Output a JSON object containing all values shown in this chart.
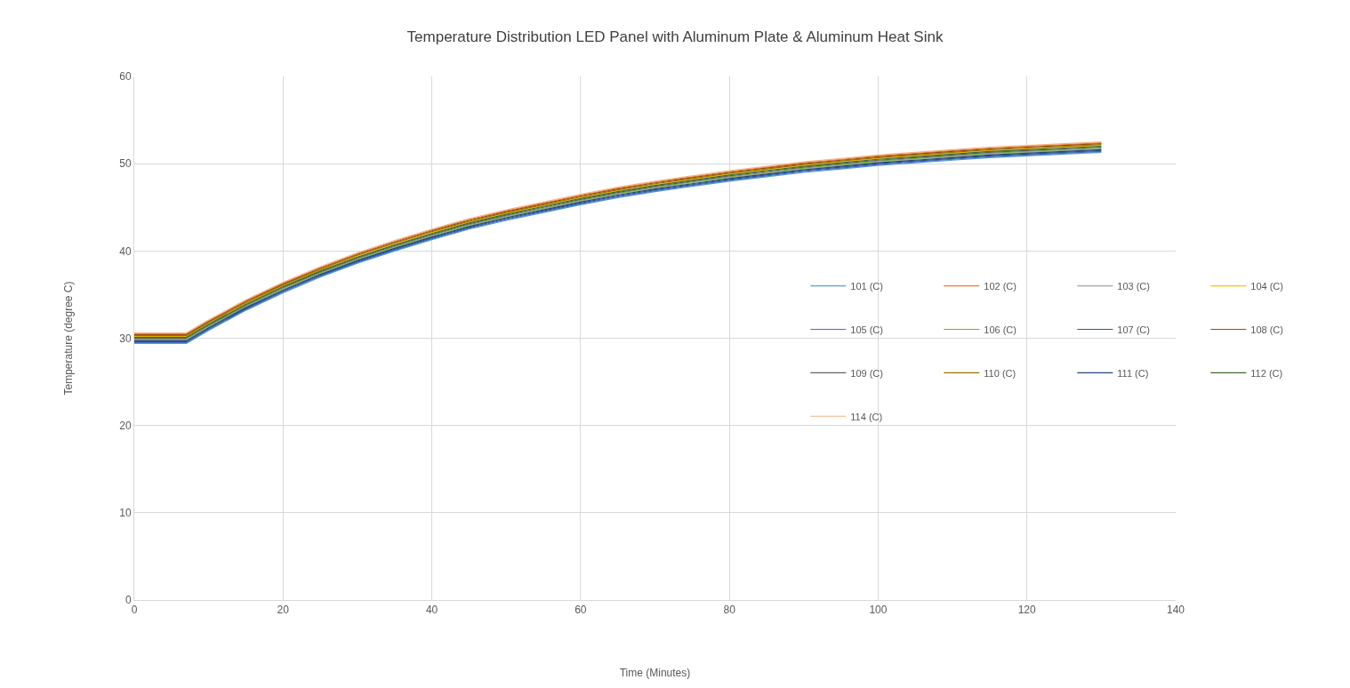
{
  "chart_data": {
    "type": "line",
    "title": "Temperature Distribution LED Panel with Aluminum Plate & Aluminum Heat Sink",
    "xlabel": "Time (Minutes)",
    "ylabel": "Temperature (degree C)",
    "x": [
      0,
      7,
      10,
      15,
      20,
      25,
      30,
      35,
      40,
      45,
      50,
      55,
      60,
      65,
      70,
      75,
      80,
      85,
      90,
      95,
      100,
      105,
      110,
      115,
      120,
      125,
      130
    ],
    "xlim": [
      0,
      140
    ],
    "xticks": [
      0,
      20,
      40,
      60,
      80,
      100,
      120,
      140
    ],
    "ylim": [
      0,
      60
    ],
    "yticks": [
      0,
      10,
      20,
      30,
      40,
      50,
      60
    ],
    "grid": true,
    "legend": "right",
    "marker": "none",
    "line_style": "solid",
    "series": [
      {
        "name": "101 (C)",
        "color": "#5b9bd5",
        "values": [
          29.4,
          29.4,
          30.9,
          33.2,
          35.2,
          37.0,
          38.6,
          40.0,
          41.3,
          42.5,
          43.5,
          44.4,
          45.3,
          46.1,
          46.8,
          47.4,
          48.0,
          48.5,
          49.0,
          49.4,
          49.8,
          50.1,
          50.4,
          50.7,
          50.9,
          51.1,
          51.3
        ]
      },
      {
        "name": "102 (C)",
        "color": "#ed7d31",
        "values": [
          30.5,
          30.5,
          32.0,
          34.3,
          36.3,
          38.1,
          39.7,
          41.1,
          42.4,
          43.6,
          44.6,
          45.5,
          46.4,
          47.2,
          47.9,
          48.5,
          49.1,
          49.6,
          50.1,
          50.5,
          50.9,
          51.2,
          51.5,
          51.8,
          52.0,
          52.2,
          52.4
        ]
      },
      {
        "name": "103 (C)",
        "color": "#a5a5a5",
        "values": [
          29.8,
          29.8,
          31.3,
          33.6,
          35.6,
          37.4,
          39.0,
          40.4,
          41.7,
          42.9,
          43.9,
          44.8,
          45.7,
          46.5,
          47.2,
          47.8,
          48.4,
          48.9,
          49.4,
          49.8,
          50.2,
          50.5,
          50.8,
          51.1,
          51.3,
          51.5,
          51.7
        ]
      },
      {
        "name": "104 (C)",
        "color": "#ffc000",
        "values": [
          30.2,
          30.2,
          31.7,
          34.0,
          36.0,
          37.8,
          39.4,
          40.8,
          42.1,
          43.3,
          44.3,
          45.2,
          46.1,
          46.9,
          47.6,
          48.2,
          48.8,
          49.3,
          49.8,
          50.2,
          50.6,
          50.9,
          51.2,
          51.5,
          51.7,
          51.9,
          52.1
        ]
      },
      {
        "name": "105 (C)",
        "color": "#4472c4",
        "values": [
          29.5,
          29.5,
          31.0,
          33.3,
          35.3,
          37.1,
          38.7,
          40.1,
          41.4,
          42.6,
          43.6,
          44.5,
          45.4,
          46.2,
          46.9,
          47.5,
          48.1,
          48.6,
          49.1,
          49.5,
          49.9,
          50.2,
          50.5,
          50.8,
          51.0,
          51.2,
          51.4
        ]
      },
      {
        "name": "106 (C)",
        "color": "#70ad47",
        "values": [
          29.9,
          29.9,
          31.4,
          33.7,
          35.7,
          37.5,
          39.1,
          40.5,
          41.8,
          43.0,
          44.0,
          44.9,
          45.8,
          46.6,
          47.3,
          47.9,
          48.5,
          49.0,
          49.5,
          49.9,
          50.3,
          50.6,
          50.9,
          51.2,
          51.4,
          51.6,
          51.8
        ]
      },
      {
        "name": "107 (C)",
        "color": "#255e91",
        "values": [
          29.6,
          29.6,
          31.1,
          33.4,
          35.4,
          37.2,
          38.8,
          40.2,
          41.5,
          42.7,
          43.7,
          44.6,
          45.5,
          46.3,
          47.0,
          47.6,
          48.2,
          48.7,
          49.2,
          49.6,
          50.0,
          50.3,
          50.6,
          50.9,
          51.1,
          51.3,
          51.5
        ]
      },
      {
        "name": "108 (C)",
        "color": "#9e480e",
        "values": [
          30.4,
          30.4,
          31.9,
          34.2,
          36.2,
          38.0,
          39.6,
          41.0,
          42.3,
          43.5,
          44.5,
          45.4,
          46.3,
          47.1,
          47.8,
          48.4,
          49.0,
          49.5,
          50.0,
          50.4,
          50.8,
          51.1,
          51.4,
          51.7,
          51.9,
          52.1,
          52.3
        ]
      },
      {
        "name": "109 (C)",
        "color": "#636363",
        "values": [
          30.0,
          30.0,
          31.5,
          33.8,
          35.8,
          37.6,
          39.2,
          40.6,
          41.9,
          43.1,
          44.1,
          45.0,
          45.9,
          46.7,
          47.4,
          48.0,
          48.6,
          49.1,
          49.6,
          50.0,
          50.4,
          50.7,
          51.0,
          51.3,
          51.5,
          51.7,
          51.9
        ]
      },
      {
        "name": "110 (C)",
        "color": "#997300",
        "values": [
          30.3,
          30.3,
          31.8,
          34.1,
          36.1,
          37.9,
          39.5,
          40.9,
          42.2,
          43.4,
          44.4,
          45.3,
          46.2,
          47.0,
          47.7,
          48.3,
          48.9,
          49.4,
          49.9,
          50.3,
          50.7,
          51.0,
          51.3,
          51.6,
          51.8,
          52.0,
          52.2
        ]
      },
      {
        "name": "111 (C)",
        "color": "#264478",
        "values": [
          29.7,
          29.7,
          31.2,
          33.5,
          35.5,
          37.3,
          38.9,
          40.3,
          41.6,
          42.8,
          43.8,
          44.7,
          45.6,
          46.4,
          47.1,
          47.7,
          48.3,
          48.8,
          49.3,
          49.7,
          50.1,
          50.4,
          50.7,
          51.0,
          51.2,
          51.4,
          51.6
        ]
      },
      {
        "name": "112 (C)",
        "color": "#43682b",
        "values": [
          30.1,
          30.1,
          31.6,
          33.9,
          35.9,
          37.7,
          39.3,
          40.7,
          42.0,
          43.2,
          44.2,
          45.1,
          46.0,
          46.8,
          47.5,
          48.1,
          48.7,
          49.2,
          49.7,
          50.1,
          50.5,
          50.8,
          51.1,
          51.4,
          51.6,
          51.8,
          52.0
        ]
      },
      {
        "name": "114 (C)",
        "color": "#f4b183",
        "values": [
          30.6,
          30.6,
          32.1,
          34.4,
          36.4,
          38.2,
          39.8,
          41.2,
          42.5,
          43.7,
          44.7,
          45.6,
          46.5,
          47.3,
          48.0,
          48.6,
          49.2,
          49.7,
          50.2,
          50.6,
          51.0,
          51.3,
          51.6,
          51.9,
          52.1,
          52.3,
          52.5
        ]
      }
    ]
  }
}
